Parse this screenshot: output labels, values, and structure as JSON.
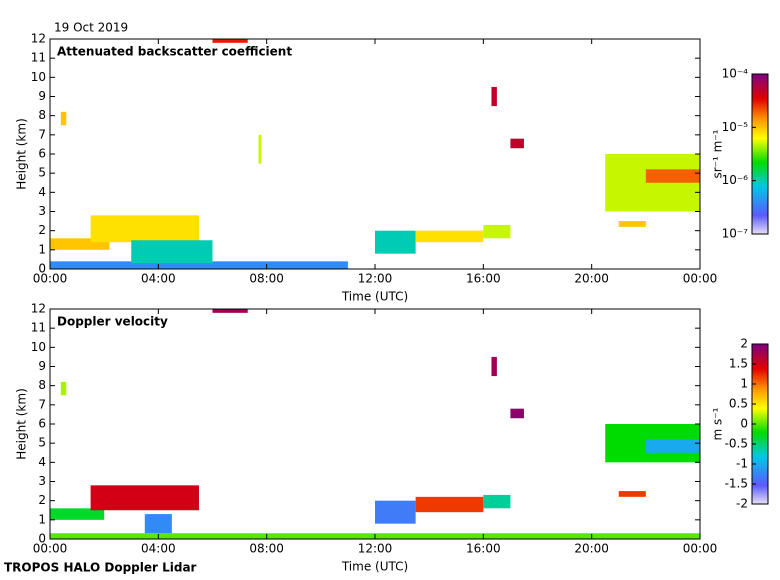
{
  "header": {
    "date": "19 Oct 2019"
  },
  "footer": {
    "text": "TROPOS HALO Doppler Lidar"
  },
  "chart_data": [
    {
      "type": "heatmap",
      "title": "Attenuated backscatter coefficient",
      "xlabel": "Time (UTC)",
      "ylabel": "Height (km)",
      "colorbar_label": "sr⁻¹ m⁻¹",
      "xlim": [
        0,
        24
      ],
      "ylim": [
        0,
        12
      ],
      "xticks": [
        {
          "value": 0,
          "label": "00:00"
        },
        {
          "value": 4,
          "label": "04:00"
        },
        {
          "value": 8,
          "label": "08:00"
        },
        {
          "value": 12,
          "label": "12:00"
        },
        {
          "value": 16,
          "label": "16:00"
        },
        {
          "value": 20,
          "label": "20:00"
        },
        {
          "value": 24,
          "label": "00:00"
        }
      ],
      "yticks": [
        0,
        1,
        2,
        3,
        4,
        5,
        6,
        7,
        8,
        9,
        10,
        11,
        12
      ],
      "clim": [
        1e-07,
        0.0001
      ],
      "color_log": true,
      "cticks": [
        {
          "value": 1e-07,
          "label": "10⁻⁷"
        },
        {
          "value": 1e-06,
          "label": "10⁻⁶"
        },
        {
          "value": 1e-05,
          "label": "10⁻⁵"
        },
        {
          "value": 0.0001,
          "label": "10⁻⁴"
        }
      ],
      "cells": [
        {
          "x": [
            0,
            11
          ],
          "y": [
            0,
            0.4
          ],
          "value": 4e-07
        },
        {
          "x": [
            0,
            2.2
          ],
          "y": [
            1,
            1.6
          ],
          "value": 1e-05
        },
        {
          "x": [
            1.5,
            5.5
          ],
          "y": [
            1.4,
            2.8
          ],
          "value": 8e-06
        },
        {
          "x": [
            3,
            6
          ],
          "y": [
            0.3,
            1.5
          ],
          "value": 1e-06
        },
        {
          "x": [
            12,
            13.5
          ],
          "y": [
            0.8,
            2
          ],
          "value": 1e-06
        },
        {
          "x": [
            13.5,
            16
          ],
          "y": [
            1.4,
            2
          ],
          "value": 8e-06
        },
        {
          "x": [
            16,
            17
          ],
          "y": [
            1.6,
            2.3
          ],
          "value": 5e-06
        },
        {
          "x": [
            20.5,
            24
          ],
          "y": [
            3,
            6
          ],
          "value": 5e-06
        },
        {
          "x": [
            22,
            24
          ],
          "y": [
            4.5,
            5.2
          ],
          "value": 2e-05
        },
        {
          "x": [
            6,
            7.3
          ],
          "y": [
            11.8,
            12
          ],
          "value": 3e-05
        },
        {
          "x": [
            17,
            17.5
          ],
          "y": [
            6.3,
            6.8
          ],
          "value": 5e-05
        },
        {
          "x": [
            16.3,
            16.5
          ],
          "y": [
            8.5,
            9.5
          ],
          "value": 5e-05
        },
        {
          "x": [
            0.4,
            0.6
          ],
          "y": [
            7.5,
            8.2
          ],
          "value": 1e-05
        },
        {
          "x": [
            7.7,
            7.8
          ],
          "y": [
            5.5,
            7
          ],
          "value": 5e-06
        },
        {
          "x": [
            21,
            22
          ],
          "y": [
            2.2,
            2.5
          ],
          "value": 1e-05
        }
      ]
    },
    {
      "type": "heatmap",
      "title": "Doppler velocity",
      "xlabel": "Time (UTC)",
      "ylabel": "Height (km)",
      "colorbar_label": "m s⁻¹",
      "xlim": [
        0,
        24
      ],
      "ylim": [
        0,
        12
      ],
      "xticks": [
        {
          "value": 0,
          "label": "00:00"
        },
        {
          "value": 4,
          "label": "04:00"
        },
        {
          "value": 8,
          "label": "08:00"
        },
        {
          "value": 12,
          "label": "12:00"
        },
        {
          "value": 16,
          "label": "16:00"
        },
        {
          "value": 20,
          "label": "20:00"
        },
        {
          "value": 24,
          "label": "00:00"
        }
      ],
      "yticks": [
        0,
        1,
        2,
        3,
        4,
        5,
        6,
        7,
        8,
        9,
        10,
        11,
        12
      ],
      "clim": [
        -2,
        2
      ],
      "color_log": false,
      "cticks": [
        -2,
        -1.5,
        -1,
        -0.5,
        0,
        0.5,
        1,
        1.5,
        2
      ],
      "cells": [
        {
          "x": [
            0,
            24
          ],
          "y": [
            0,
            0.3
          ],
          "value": 0
        },
        {
          "x": [
            0,
            2
          ],
          "y": [
            1,
            1.6
          ],
          "value": -0.3
        },
        {
          "x": [
            1.5,
            5.5
          ],
          "y": [
            1.5,
            2.8
          ],
          "value": 1.5
        },
        {
          "x": [
            3.5,
            4.5
          ],
          "y": [
            0.3,
            1.3
          ],
          "value": -1.2
        },
        {
          "x": [
            12,
            13.5
          ],
          "y": [
            0.8,
            2
          ],
          "value": -1.3
        },
        {
          "x": [
            13.5,
            16
          ],
          "y": [
            1.4,
            2.2
          ],
          "value": 1.2
        },
        {
          "x": [
            16,
            17
          ],
          "y": [
            1.6,
            2.3
          ],
          "value": -0.6
        },
        {
          "x": [
            20.5,
            24
          ],
          "y": [
            4,
            6
          ],
          "value": -0.2
        },
        {
          "x": [
            22,
            24
          ],
          "y": [
            4.5,
            5.2
          ],
          "value": -1
        },
        {
          "x": [
            6,
            7.3
          ],
          "y": [
            11.8,
            12
          ],
          "value": 1.8
        },
        {
          "x": [
            17,
            17.5
          ],
          "y": [
            6.3,
            6.8
          ],
          "value": 1.9
        },
        {
          "x": [
            16.3,
            16.5
          ],
          "y": [
            8.5,
            9.5
          ],
          "value": 1.8
        },
        {
          "x": [
            0.4,
            0.6
          ],
          "y": [
            7.5,
            8.2
          ],
          "value": 0.2
        },
        {
          "x": [
            21,
            22
          ],
          "y": [
            2.2,
            2.5
          ],
          "value": 1.2
        }
      ]
    }
  ]
}
